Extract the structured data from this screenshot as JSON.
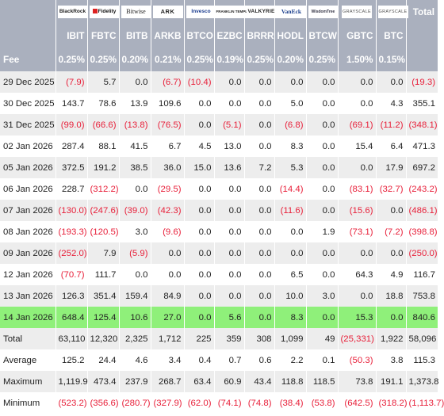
{
  "logos": [
    {
      "key": "ibit",
      "name": "blackrock-logo",
      "text": "BlackRock"
    },
    {
      "key": "fbtc",
      "name": "fidelity-logo",
      "text": "Fidelity"
    },
    {
      "key": "bitb",
      "name": "bitwise-logo",
      "text": "Bitwise"
    },
    {
      "key": "arkb",
      "name": "ark-logo",
      "text": "ARK"
    },
    {
      "key": "btco",
      "name": "invesco-logo",
      "text": "Invesco"
    },
    {
      "key": "ezbc",
      "name": "franklin-templeton-logo",
      "text": "FRANKLIN TEMPLETON"
    },
    {
      "key": "brrr",
      "name": "valkyrie-logo",
      "text": "VALKYRIE"
    },
    {
      "key": "hodl",
      "name": "vaneck-logo",
      "text": "VanEck"
    },
    {
      "key": "btcw",
      "name": "wisdomtree-logo",
      "text": "WisdomTree"
    },
    {
      "key": "gbtc",
      "name": "grayscale-logo",
      "text": "GRAYSCALE"
    },
    {
      "key": "btc",
      "name": "grayscale-mini-logo",
      "text": "GRAYSCALE"
    }
  ],
  "total_header": "Total",
  "tickers": [
    "IBIT",
    "FBTC",
    "BITB",
    "ARKB",
    "BTCO",
    "EZBC",
    "BRRR",
    "HODL",
    "BTCW",
    "GBTC",
    "BTC"
  ],
  "fee_label": "Fee",
  "fees": [
    "0.25%",
    "0.25%",
    "0.20%",
    "0.21%",
    "0.25%",
    "0.19%",
    "0.25%",
    "0.20%",
    "0.25%",
    "1.50%",
    "0.15%",
    ""
  ],
  "rows": [
    {
      "date": "29 Dec 2025",
      "values": [
        "(7.9)",
        "5.7",
        "0.0",
        "(6.7)",
        "(10.4)",
        "0.0",
        "0.0",
        "0.0",
        "0.0",
        "0.0",
        "0.0",
        "(19.3)"
      ]
    },
    {
      "date": "30 Dec 2025",
      "values": [
        "143.7",
        "78.6",
        "13.9",
        "109.6",
        "0.0",
        "0.0",
        "0.0",
        "5.0",
        "0.0",
        "0.0",
        "4.3",
        "355.1"
      ]
    },
    {
      "date": "31 Dec 2025",
      "values": [
        "(99.0)",
        "(66.6)",
        "(13.8)",
        "(76.5)",
        "0.0",
        "(5.1)",
        "0.0",
        "(6.8)",
        "0.0",
        "(69.1)",
        "(11.2)",
        "(348.1)"
      ]
    },
    {
      "date": "02 Jan 2026",
      "values": [
        "287.4",
        "88.1",
        "41.5",
        "6.7",
        "4.5",
        "13.0",
        "0.0",
        "8.3",
        "0.0",
        "15.4",
        "6.4",
        "471.3"
      ]
    },
    {
      "date": "05 Jan 2026",
      "values": [
        "372.5",
        "191.2",
        "38.5",
        "36.0",
        "15.0",
        "13.6",
        "7.2",
        "5.3",
        "0.0",
        "0.0",
        "17.9",
        "697.2"
      ]
    },
    {
      "date": "06 Jan 2026",
      "values": [
        "228.7",
        "(312.2)",
        "0.0",
        "(29.5)",
        "0.0",
        "0.0",
        "0.0",
        "(14.4)",
        "0.0",
        "(83.1)",
        "(32.7)",
        "(243.2)"
      ]
    },
    {
      "date": "07 Jan 2026",
      "values": [
        "(130.0)",
        "(247.6)",
        "(39.0)",
        "(42.3)",
        "0.0",
        "0.0",
        "0.0",
        "(11.6)",
        "0.0",
        "(15.6)",
        "0.0",
        "(486.1)"
      ]
    },
    {
      "date": "08 Jan 2026",
      "values": [
        "(193.3)",
        "(120.5)",
        "3.0",
        "(9.6)",
        "0.0",
        "0.0",
        "0.0",
        "0.0",
        "1.9",
        "(73.1)",
        "(7.2)",
        "(398.8)"
      ]
    },
    {
      "date": "09 Jan 2026",
      "values": [
        "(252.0)",
        "7.9",
        "(5.9)",
        "0.0",
        "0.0",
        "0.0",
        "0.0",
        "0.0",
        "0.0",
        "0.0",
        "0.0",
        "(250.0)"
      ]
    },
    {
      "date": "12 Jan 2026",
      "values": [
        "(70.7)",
        "111.7",
        "0.0",
        "0.0",
        "0.0",
        "0.0",
        "0.0",
        "6.5",
        "0.0",
        "64.3",
        "4.9",
        "116.7"
      ]
    },
    {
      "date": "13 Jan 2026",
      "values": [
        "126.3",
        "351.4",
        "159.4",
        "84.9",
        "0.0",
        "0.0",
        "0.0",
        "10.0",
        "3.0",
        "0.0",
        "18.8",
        "753.8"
      ]
    },
    {
      "date": "14 Jan 2026",
      "values": [
        "648.4",
        "125.4",
        "10.6",
        "27.0",
        "0.0",
        "5.6",
        "0.0",
        "8.3",
        "0.0",
        "15.3",
        "0.0",
        "840.6"
      ],
      "highlight": true
    }
  ],
  "stats": [
    {
      "label": "Total",
      "values": [
        "63,110",
        "12,320",
        "2,325",
        "1,712",
        "225",
        "359",
        "308",
        "1,099",
        "49",
        "(25,331)",
        "1,922",
        "58,096"
      ]
    },
    {
      "label": "Average",
      "values": [
        "125.2",
        "24.4",
        "4.6",
        "3.4",
        "0.4",
        "0.7",
        "0.6",
        "2.2",
        "0.1",
        "(50.3)",
        "3.8",
        "115.3"
      ]
    },
    {
      "label": "Maximum",
      "values": [
        "1,119.9",
        "473.4",
        "237.9",
        "268.7",
        "63.4",
        "60.9",
        "43.4",
        "118.8",
        "118.5",
        "73.8",
        "191.1",
        "1,373.8"
      ]
    },
    {
      "label": "Minimum",
      "values": [
        "(523.2)",
        "(356.6)",
        "(280.7)",
        "(327.9)",
        "(62.0)",
        "(74.1)",
        "(74.8)",
        "(38.4)",
        "(53.8)",
        "(642.5)",
        "(318.2)",
        "(1,113.7)"
      ]
    }
  ]
}
